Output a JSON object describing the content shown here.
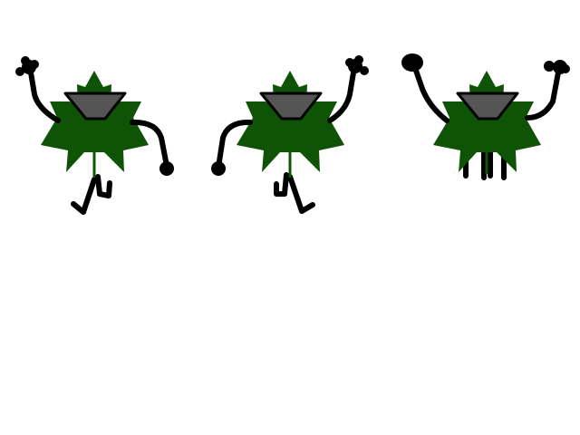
{
  "sprite_sheet": {
    "frames": [
      {
        "id": "frame-1",
        "pose": "right-arm-raised-left-hand-down"
      },
      {
        "id": "frame-2",
        "pose": "left-arm-raised-right-hand-down"
      },
      {
        "id": "frame-3",
        "pose": "both-arms-raised"
      }
    ],
    "colors": {
      "background": "#ffffff",
      "leaf": "#0f5406",
      "limb": "#000000",
      "mouth": "#555555"
    }
  }
}
